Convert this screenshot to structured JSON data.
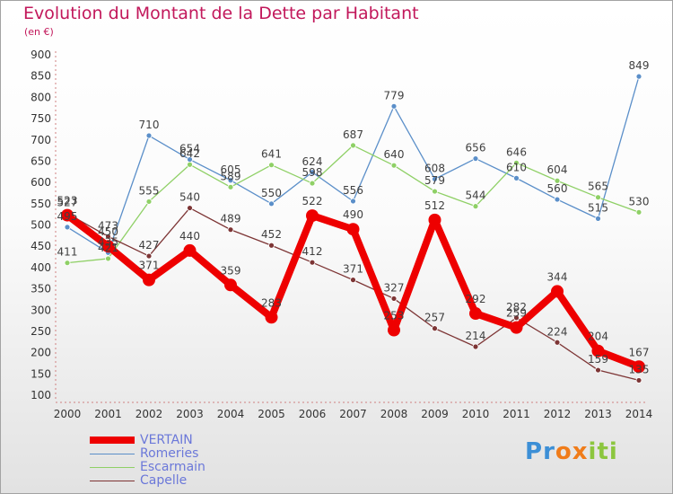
{
  "title": "Evolution du Montant de la Dette par Habitant",
  "subtitle": "(en €)",
  "logo": {
    "letters": [
      "P",
      "r",
      "o",
      "x",
      "i",
      "t",
      "i"
    ],
    "colors": [
      "#3c8fd6",
      "#3c8fd6",
      "#f07c1a",
      "#f07c1a",
      "#8cc63f",
      "#8cc63f",
      "#8cc63f"
    ]
  },
  "chart_data": {
    "type": "line",
    "title": "Evolution du Montant de la Dette par Habitant",
    "subtitle": "(en €)",
    "x": [
      "2000",
      "2001",
      "2002",
      "2003",
      "2004",
      "2005",
      "2006",
      "2007",
      "2008",
      "2009",
      "2010",
      "2011",
      "2012",
      "2013",
      "2014"
    ],
    "y_ticks": [
      100,
      150,
      200,
      250,
      300,
      350,
      400,
      450,
      500,
      550,
      600,
      650,
      700,
      750,
      800,
      850,
      900
    ],
    "ylim": [
      100,
      900
    ],
    "grid": false,
    "legend_position": "bottom-left",
    "series": [
      {
        "name": "Romeries",
        "color": "#5b8fc9",
        "label_color": "#404040",
        "values": [
          495,
          435,
          710,
          654,
          605,
          550,
          624,
          556,
          779,
          608,
          656,
          610,
          560,
          515,
          849
        ],
        "labels": [
          "495",
          "435",
          "710",
          "654",
          "605",
          "550",
          "624",
          "556",
          "779",
          "608",
          "656",
          "610",
          "560",
          "515",
          "849"
        ]
      },
      {
        "name": "Escarmain",
        "color": "#8fd066",
        "label_color": "#404040",
        "values": [
          411,
          421,
          555,
          642,
          589,
          641,
          598,
          687,
          640,
          579,
          544,
          646,
          604,
          565,
          530
        ],
        "labels": [
          "411",
          "421",
          "555",
          "642",
          "589",
          "641",
          "598",
          "687",
          "640",
          "579",
          "544",
          "646",
          "604",
          "565",
          "530"
        ]
      },
      {
        "name": "Capelle",
        "color": "#7d3535",
        "label_color": "#404040",
        "values": [
          527,
          473,
          427,
          540,
          489,
          452,
          412,
          371,
          327,
          257,
          214,
          282,
          224,
          159,
          135
        ],
        "labels": [
          "527",
          "473",
          "427",
          "540",
          "489",
          "452",
          "412",
          "371",
          "327",
          "257",
          "214",
          "282",
          "224",
          "159",
          "135"
        ]
      },
      {
        "name": "VERTAIN",
        "color": "#ee0000",
        "label_color": "#404040",
        "values": [
          523,
          450,
          371,
          440,
          359,
          283,
          522,
          490,
          253,
          512,
          292,
          259,
          344,
          204,
          167
        ],
        "labels": [
          "523",
          "450",
          "371",
          "440",
          "359",
          "283",
          "522",
          "490",
          "253",
          "512",
          "292",
          "259",
          "344",
          "204",
          "167"
        ]
      }
    ],
    "legend": [
      {
        "name": "VERTAIN",
        "color": "#ee0000",
        "thick": true
      },
      {
        "name": "Romeries",
        "color": "#5b8fc9",
        "thick": false
      },
      {
        "name": "Escarmain",
        "color": "#8fd066",
        "thick": false
      },
      {
        "name": "Capelle",
        "color": "#7d3535",
        "thick": false
      }
    ]
  }
}
